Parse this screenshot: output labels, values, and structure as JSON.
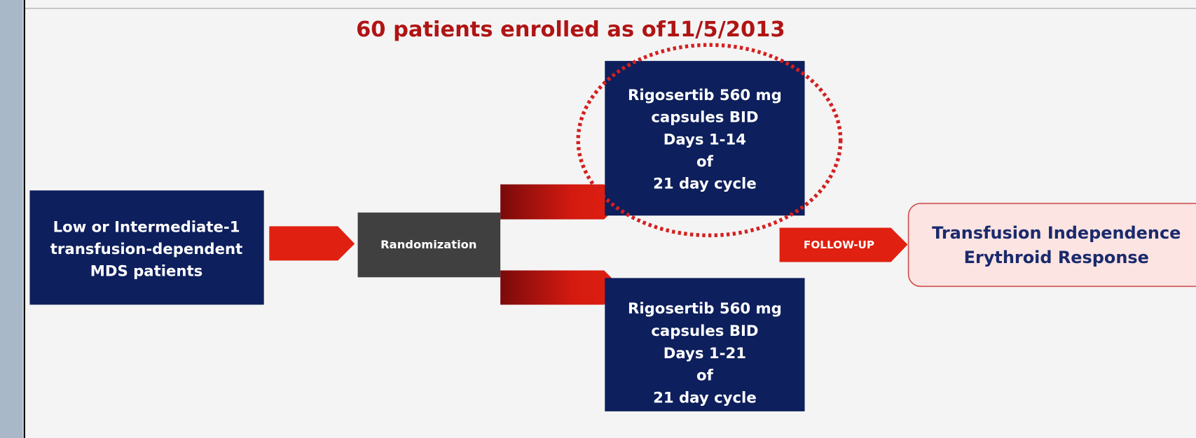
{
  "title": "60 patients enrolled as of11/5/2013",
  "nodes": [
    {
      "lines": [
        "Low or Intermediate-1",
        "transfusion-dependent",
        "MDS patients"
      ]
    },
    {
      "lines": [
        "Randomization"
      ]
    },
    {
      "lines": [
        "Rigosertib 560 mg",
        "capsules BID",
        "Days 1-14",
        "of",
        "21 day cycle"
      ]
    },
    {
      "lines": [
        "Rigosertib 560 mg",
        "capsules BID",
        "Days 1-21",
        "of",
        "21 day cycle"
      ]
    },
    {
      "lines": [
        "Transfusion Independence",
        "Erythroid Response"
      ]
    }
  ],
  "arrow_label": "FOLLOW-UP"
}
